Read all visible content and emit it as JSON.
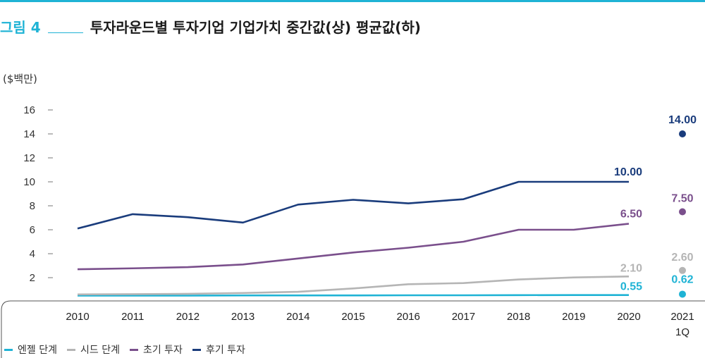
{
  "header": {
    "figure_number": "그림 4",
    "title": "투자라운드별 투자기업 기업가치 중간값(상) 평균값(하)"
  },
  "chart_data": {
    "type": "line",
    "unit_label": "($백만)",
    "categories": [
      "2010",
      "2011",
      "2012",
      "2013",
      "2014",
      "2015",
      "2016",
      "2017",
      "2018",
      "2019",
      "2020"
    ],
    "extra_category": [
      "2021",
      "1Q"
    ],
    "y_ticks": [
      2,
      4,
      6,
      8,
      10,
      12,
      14,
      16
    ],
    "ylim": [
      0,
      16
    ],
    "grid": false,
    "legend_position": "bottom-left",
    "series": [
      {
        "name": "엔젤 단계",
        "color": "#1fb3d5",
        "values": [
          0.5,
          0.5,
          0.5,
          0.52,
          0.52,
          0.52,
          0.53,
          0.53,
          0.54,
          0.55,
          0.55
        ],
        "end_label": "0.55",
        "value_2021": 0.62,
        "label_2021": "0.62"
      },
      {
        "name": "시드 단계",
        "color": "#b5b5b5",
        "values": [
          0.6,
          0.62,
          0.65,
          0.72,
          0.82,
          1.1,
          1.45,
          1.55,
          1.85,
          2.02,
          2.1
        ],
        "end_label": "2.10",
        "value_2021": 2.6,
        "label_2021": "2.60"
      },
      {
        "name": "초기 투자",
        "color": "#7a4f8c",
        "values": [
          2.7,
          2.78,
          2.88,
          3.1,
          3.6,
          4.1,
          4.5,
          5.0,
          6.0,
          6.0,
          6.5
        ],
        "end_label": "6.50",
        "value_2021": 7.5,
        "label_2021": "7.50"
      },
      {
        "name": "후기 투자",
        "color": "#1a3c7c",
        "values": [
          6.1,
          7.3,
          7.05,
          6.6,
          8.1,
          8.5,
          8.2,
          8.55,
          10.0,
          10.0,
          10.0
        ],
        "end_label": "10.00",
        "value_2021": 14.0,
        "label_2021": "14.00"
      }
    ]
  }
}
